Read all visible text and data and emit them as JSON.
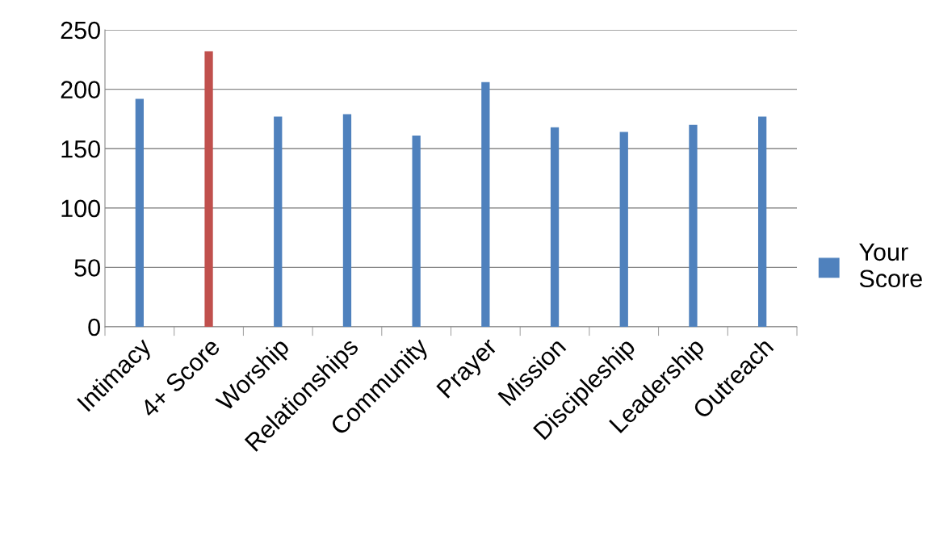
{
  "chart_data": {
    "type": "bar",
    "categories": [
      "Intimacy",
      "4+ Score",
      "Worship",
      "Relationships",
      "Community",
      "Prayer",
      "Mission",
      "Discipleship",
      "Leadership",
      "Outreach"
    ],
    "series": [
      {
        "name": "Your Score",
        "color": "#4f81bd",
        "colors": [
          "#4f81bd",
          "#c0504d",
          "#4f81bd",
          "#4f81bd",
          "#4f81bd",
          "#4f81bd",
          "#4f81bd",
          "#4f81bd",
          "#4f81bd",
          "#4f81bd"
        ],
        "values": [
          192,
          232,
          177,
          179,
          161,
          206,
          168,
          164,
          170,
          177
        ]
      }
    ],
    "ylim": [
      0,
      250
    ],
    "yticks": [
      0,
      50,
      100,
      150,
      200,
      250
    ],
    "grid": "y",
    "legend": "right"
  }
}
